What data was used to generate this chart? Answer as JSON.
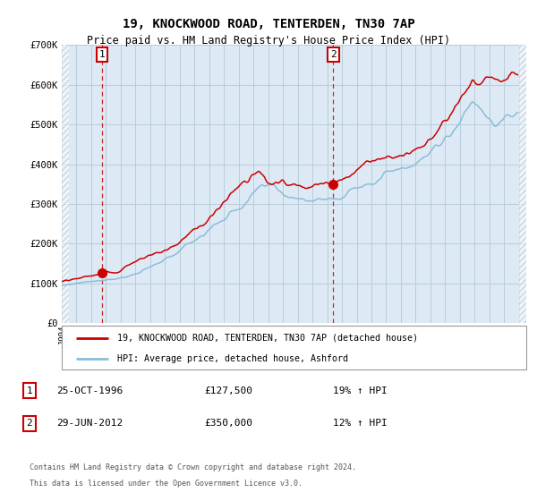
{
  "title": "19, KNOCKWOOD ROAD, TENTERDEN, TN30 7AP",
  "subtitle": "Price paid vs. HM Land Registry's House Price Index (HPI)",
  "sale1_date_str": "25-OCT-1996",
  "sale1_price": 127500,
  "sale2_date_str": "29-JUN-2012",
  "sale2_price": 350000,
  "sale1_pct": "19% ↑ HPI",
  "sale2_pct": "12% ↑ HPI",
  "legend_line1": "19, KNOCKWOOD ROAD, TENTERDEN, TN30 7AP (detached house)",
  "legend_line2": "HPI: Average price, detached house, Ashford",
  "footer1": "Contains HM Land Registry data © Crown copyright and database right 2024.",
  "footer2": "This data is licensed under the Open Government Licence v3.0.",
  "red_color": "#cc0000",
  "blue_color": "#8bbdd9",
  "background_color": "#ddeaf5",
  "grid_color": "#b8cdd8",
  "yticks": [
    0,
    100000,
    200000,
    300000,
    400000,
    500000,
    600000,
    700000
  ],
  "ytick_labels": [
    "£0",
    "£100K",
    "£200K",
    "£300K",
    "£400K",
    "£500K",
    "£600K",
    "£700K"
  ]
}
